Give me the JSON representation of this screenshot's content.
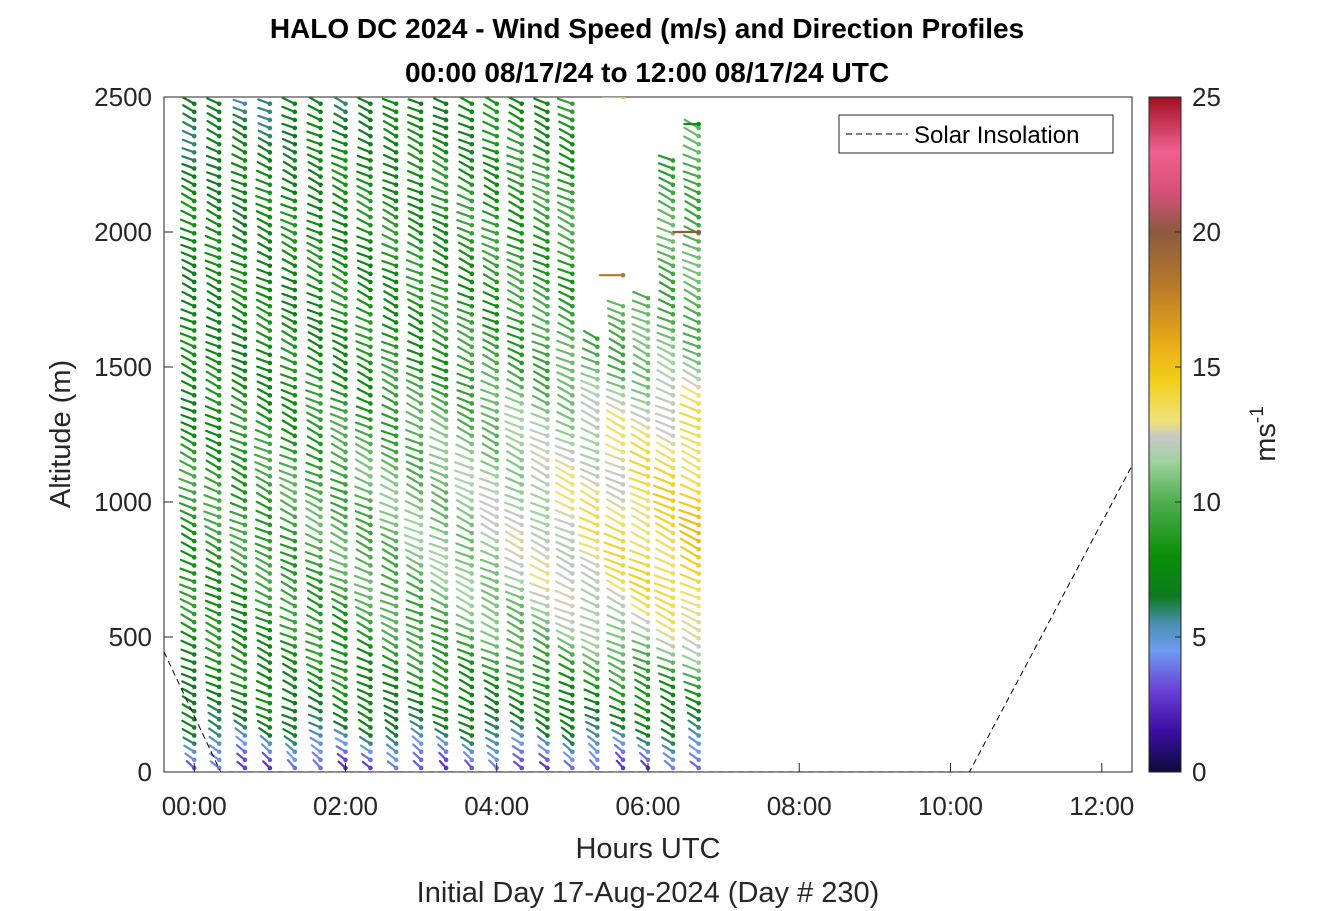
{
  "chart_data": {
    "type": "wind-barb-profile",
    "title": "HALO DC 2024 - Wind Speed (m/s) and Direction Profiles",
    "subtitle": "00:00 08/17/24 to 12:00 08/17/24  UTC",
    "xlabel": "Hours UTC",
    "xlabel2": "Initial Day 17-Aug-2024 (Day # 230)",
    "ylabel": "Altitude (m)",
    "xlim": [
      -0.4,
      12.4
    ],
    "ylim": [
      0,
      2500
    ],
    "x_ticks": [
      0,
      2,
      4,
      6,
      8,
      10,
      12
    ],
    "x_tick_labels": [
      "00:00",
      "02:00",
      "04:00",
      "06:00",
      "08:00",
      "10:00",
      "12:00"
    ],
    "y_ticks": [
      0,
      500,
      1000,
      1500,
      2000,
      2500
    ],
    "y_tick_labels": [
      "0",
      "500",
      "1000",
      "1500",
      "2000",
      "2500"
    ],
    "colorbar": {
      "label": "ms",
      "label_exponent": "-1",
      "range": [
        0,
        25
      ],
      "ticks": [
        0,
        5,
        10,
        15,
        20,
        25
      ],
      "tick_labels": [
        "0",
        "5",
        "10",
        "15",
        "20",
        "25"
      ],
      "stops": [
        {
          "v": 0,
          "c": "#0b0b3a"
        },
        {
          "v": 1.5,
          "c": "#3a0ea0"
        },
        {
          "v": 3,
          "c": "#6a3fd6"
        },
        {
          "v": 4.5,
          "c": "#6e9cf0"
        },
        {
          "v": 5.5,
          "c": "#4a8fb0"
        },
        {
          "v": 6.5,
          "c": "#0e7a20"
        },
        {
          "v": 8,
          "c": "#0a8f0a"
        },
        {
          "v": 10,
          "c": "#4fae4f"
        },
        {
          "v": 11.5,
          "c": "#9fd29f"
        },
        {
          "v": 12.4,
          "c": "#c8c8c8"
        },
        {
          "v": 13,
          "c": "#f0e27a"
        },
        {
          "v": 14.5,
          "c": "#f2cf1a"
        },
        {
          "v": 16,
          "c": "#e8a818"
        },
        {
          "v": 18,
          "c": "#b77a2a"
        },
        {
          "v": 20,
          "c": "#8b5a40"
        },
        {
          "v": 21.5,
          "c": "#d6507a"
        },
        {
          "v": 23,
          "c": "#f06090"
        },
        {
          "v": 25,
          "c": "#a01020"
        }
      ]
    },
    "legend": {
      "entries": [
        "Solar Insolation"
      ],
      "position": "top-right"
    },
    "solar_insolation": {
      "style": "dashed",
      "x": [
        -0.4,
        0.35,
        10.25,
        12.4
      ],
      "y": [
        445,
        0,
        0,
        1135
      ]
    },
    "profile_times": [
      0.0,
      0.33,
      0.67,
      1.0,
      1.33,
      1.67,
      2.0,
      2.33,
      2.67,
      3.0,
      3.33,
      3.67,
      4.0,
      4.33,
      4.67,
      5.0,
      5.33,
      5.67,
      6.0,
      6.33,
      6.67
    ],
    "profile_tops": [
      2500,
      2500,
      2500,
      2500,
      2500,
      2500,
      2500,
      2500,
      2500,
      2500,
      2500,
      2500,
      2500,
      2500,
      2500,
      2500,
      1630,
      1730,
      1780,
      2270,
      2410
    ],
    "altitude_step": 30,
    "wind_direction_deg": 245,
    "speed_profile": {
      "altitude": [
        0,
        60,
        150,
        300,
        500,
        700,
        900,
        1100,
        1300,
        1500,
        1800,
        2100,
        2500
      ],
      "speed_early": [
        3.0,
        4.0,
        6.5,
        7.5,
        8.0,
        8.5,
        9.0,
        9.0,
        8.0,
        7.5,
        7.5,
        7.5,
        6.0
      ],
      "speed_late": [
        3.0,
        4.5,
        6.5,
        8.5,
        12.5,
        14.5,
        14.5,
        14.0,
        13.5,
        11.0,
        10.0,
        10.0,
        9.5
      ]
    },
    "isolated_barbs": [
      {
        "x": 5.67,
        "y": 2500,
        "speed": 15
      },
      {
        "x": 5.67,
        "y": 1840,
        "speed": 18
      },
      {
        "x": 6.67,
        "y": 2000,
        "speed": 20
      },
      {
        "x": 6.67,
        "y": 2400,
        "speed": 8
      }
    ],
    "grid": false
  }
}
